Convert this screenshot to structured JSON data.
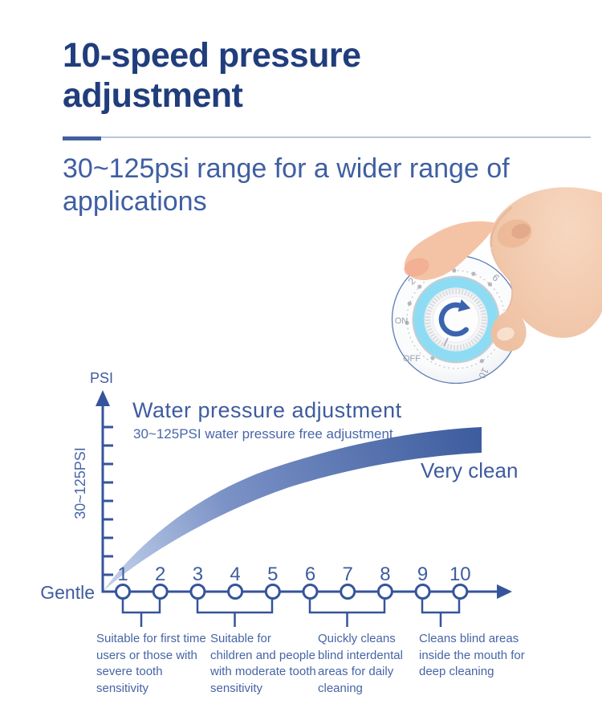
{
  "header": {
    "title": "10-speed pressure adjustment",
    "subtitle": "30~125psi range for a wider range of applications"
  },
  "dial": {
    "on_label": "ON",
    "off_label": "OFF",
    "scale_labels": [
      "2",
      "4",
      "6",
      "10"
    ],
    "ring_color": "#8edcf4",
    "arrow_color": "#3a64ad",
    "rotation_icon": "clockwise-arrow"
  },
  "chart": {
    "psi_label": "PSI",
    "y_axis_label": "30~125PSI",
    "title": "Water pressure adjustment",
    "subtitle": "30~125PSI water pressure free adjustment",
    "start_label": "Gentle",
    "end_label": "Very clean",
    "levels": [
      "1",
      "2",
      "3",
      "4",
      "5",
      "6",
      "7",
      "8",
      "9",
      "10"
    ],
    "groups": [
      {
        "levels": "1-2",
        "text": "Suitable for first time users or those with severe tooth sensitivity"
      },
      {
        "levels": "3-5",
        "text": "Suitable for children and people with moderate tooth sensitivity"
      },
      {
        "levels": "6-8",
        "text": "Quickly cleans blind interdental areas for daily cleaning"
      },
      {
        "levels": "9-10",
        "text": "Cleans blind areas inside the mouth for deep cleaning"
      }
    ],
    "accent_color": "#35549b"
  },
  "chart_data": {
    "type": "area",
    "title": "Water pressure adjustment",
    "subtitle": "30~125PSI water pressure free adjustment",
    "x_categories": [
      "1",
      "2",
      "3",
      "4",
      "5",
      "6",
      "7",
      "8",
      "9",
      "10"
    ],
    "x_start_annotation": "Gentle",
    "curve_end_annotation": "Very clean",
    "y_axis_label": "PSI",
    "y_range": "30~125PSI",
    "shape": "monotonically increasing band, concave (steep rise then plateau)",
    "grid": false,
    "legend": false
  },
  "colors": {
    "title_navy": "#203d7c",
    "text_navy": "#3f5fa3",
    "swoosh_start": "#c3d2ec",
    "swoosh_end": "#3d5c9e"
  }
}
